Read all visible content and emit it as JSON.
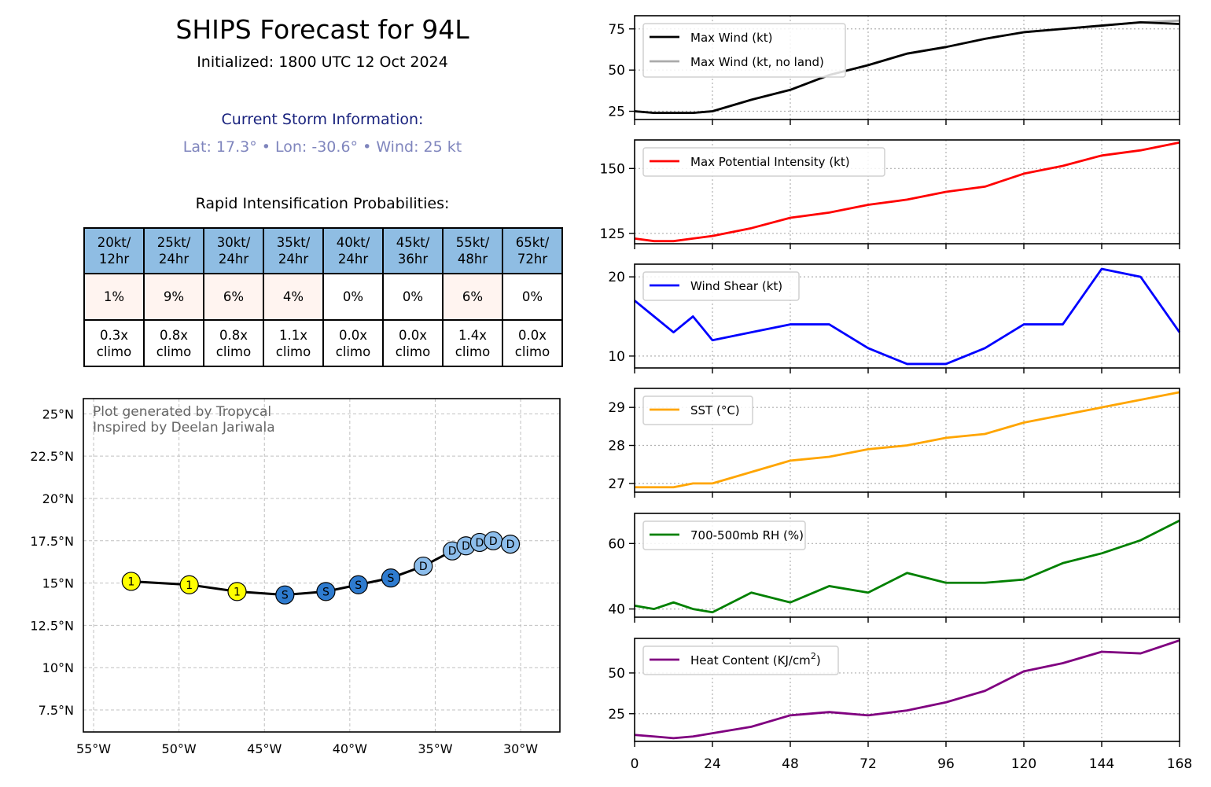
{
  "header": {
    "title": "SHIPS Forecast for 94L",
    "initialized": "Initialized: 1800 UTC 12 Oct 2024",
    "storm_heading": "Current Storm Information:",
    "storm_info": "Lat: 17.3°  • Lon: -30.6°  • Wind: 25 kt",
    "ri_heading": "Rapid Intensification Probabilities:"
  },
  "colors": {
    "table_header": "#8fbde3",
    "prob_tint": "#fff4f0",
    "storm_heading": "#1a237e",
    "storm_info": "#7f85bd",
    "track_line": "#000000",
    "tropical_storm_marker": "#ffff00",
    "subtropical_marker": "#2e7bcf",
    "disturbance_marker": "#8cbdeb"
  },
  "ri_table": {
    "columns": [
      {
        "top": "20kt/",
        "bottom": "12hr",
        "prob": "1%",
        "prob_value": 1,
        "climo_top": "0.3x",
        "climo_bottom": "climo"
      },
      {
        "top": "25kt/",
        "bottom": "24hr",
        "prob": "9%",
        "prob_value": 9,
        "climo_top": "0.8x",
        "climo_bottom": "climo"
      },
      {
        "top": "30kt/",
        "bottom": "24hr",
        "prob": "6%",
        "prob_value": 6,
        "climo_top": "0.8x",
        "climo_bottom": "climo"
      },
      {
        "top": "35kt/",
        "bottom": "24hr",
        "prob": "4%",
        "prob_value": 4,
        "climo_top": "1.1x",
        "climo_bottom": "climo"
      },
      {
        "top": "40kt/",
        "bottom": "24hr",
        "prob": "0%",
        "prob_value": 0,
        "climo_top": "0.0x",
        "climo_bottom": "climo"
      },
      {
        "top": "45kt/",
        "bottom": "36hr",
        "prob": "0%",
        "prob_value": 0,
        "climo_top": "0.0x",
        "climo_bottom": "climo"
      },
      {
        "top": "55kt/",
        "bottom": "48hr",
        "prob": "6%",
        "prob_value": 6,
        "climo_top": "1.4x",
        "climo_bottom": "climo"
      },
      {
        "top": "65kt/",
        "bottom": "72hr",
        "prob": "0%",
        "prob_value": 0,
        "climo_top": "0.0x",
        "climo_bottom": "climo"
      }
    ]
  },
  "chart_data": [
    {
      "type": "map",
      "annotation_lines": [
        "Plot generated by Tropycal",
        "Inspired by Deelan Jariwala"
      ],
      "xlim": [
        -55.6,
        -27.7
      ],
      "ylim": [
        6.2,
        25.9
      ],
      "lon_ticks": [
        -55,
        -50,
        -45,
        -40,
        -35,
        -30
      ],
      "lon_tick_labels": [
        "55°W",
        "50°W",
        "45°W",
        "40°W",
        "35°W",
        "30°W"
      ],
      "lat_ticks": [
        7.5,
        10,
        12.5,
        15,
        17.5,
        20,
        22.5,
        25
      ],
      "lat_tick_labels": [
        "7.5°N",
        "10°N",
        "12.5°N",
        "15°N",
        "17.5°N",
        "20°N",
        "22.5°N",
        "25°N"
      ],
      "grid": true,
      "track": [
        {
          "lon": -30.6,
          "lat": 17.3,
          "label": "D"
        },
        {
          "lon": -31.6,
          "lat": 17.5,
          "label": "D"
        },
        {
          "lon": -32.4,
          "lat": 17.4,
          "label": "D"
        },
        {
          "lon": -33.2,
          "lat": 17.2,
          "label": "D"
        },
        {
          "lon": -34.0,
          "lat": 16.9,
          "label": "D"
        },
        {
          "lon": -35.7,
          "lat": 16.0,
          "label": "D"
        },
        {
          "lon": -37.6,
          "lat": 15.3,
          "label": "S"
        },
        {
          "lon": -39.5,
          "lat": 14.9,
          "label": "S"
        },
        {
          "lon": -41.4,
          "lat": 14.5,
          "label": "S"
        },
        {
          "lon": -43.8,
          "lat": 14.3,
          "label": "S"
        },
        {
          "lon": -46.6,
          "lat": 14.5,
          "label": "1"
        },
        {
          "lon": -49.4,
          "lat": 14.9,
          "label": "1"
        },
        {
          "lon": -52.8,
          "lat": 15.1,
          "label": "1"
        }
      ]
    },
    {
      "type": "line",
      "x_ticks": [
        0,
        24,
        48,
        72,
        96,
        120,
        144,
        168
      ],
      "xlim": [
        0,
        168
      ],
      "grid": true,
      "legend_placement": "upper-left",
      "panels": [
        {
          "ylim": [
            20,
            83
          ],
          "y_ticks": [
            25,
            50,
            75
          ],
          "series": [
            {
              "name": "Max Wind (kt)",
              "color": "#000000",
              "x": [
                0,
                6,
                12,
                18,
                24,
                36,
                48,
                60,
                72,
                84,
                96,
                108,
                120,
                132,
                144,
                156,
                168
              ],
              "y": [
                25,
                24,
                24,
                24,
                25,
                32,
                38,
                47,
                53,
                60,
                64,
                69,
                73,
                75,
                77,
                79,
                78
              ]
            },
            {
              "name": "Max Wind (kt, no land)",
              "color": "#aaaaaa",
              "x": [
                0,
                6,
                12,
                18,
                24,
                36,
                48,
                60,
                72,
                84,
                96,
                108,
                120,
                132,
                144,
                156,
                168
              ],
              "y": [
                25,
                24,
                24,
                24,
                25,
                32,
                38,
                47,
                53,
                60,
                64,
                69,
                73,
                75,
                77,
                79,
                80
              ]
            }
          ]
        },
        {
          "ylim": [
            121,
            161
          ],
          "y_ticks": [
            125,
            150
          ],
          "series": [
            {
              "name": "Max Potential Intensity (kt)",
              "color": "#ff0000",
              "x": [
                0,
                6,
                12,
                18,
                24,
                36,
                48,
                60,
                72,
                84,
                96,
                108,
                120,
                132,
                144,
                156,
                168
              ],
              "y": [
                123,
                122,
                122,
                123,
                124,
                127,
                131,
                133,
                136,
                138,
                141,
                143,
                148,
                151,
                155,
                157,
                160
              ]
            }
          ]
        },
        {
          "ylim": [
            8.5,
            21.6
          ],
          "y_ticks": [
            10,
            20
          ],
          "series": [
            {
              "name": "Wind Shear (kt)",
              "color": "#0000ff",
              "x": [
                0,
                6,
                12,
                18,
                24,
                36,
                48,
                60,
                72,
                84,
                96,
                108,
                120,
                132,
                144,
                156,
                168
              ],
              "y": [
                17,
                15,
                13,
                15,
                12,
                13,
                14,
                14,
                11,
                9,
                9,
                11,
                14,
                14,
                21,
                20,
                13
              ]
            }
          ]
        },
        {
          "ylim": [
            26.77,
            29.5
          ],
          "y_ticks": [
            27,
            28,
            29
          ],
          "series": [
            {
              "name": "SST (°C)",
              "color": "#ffa500",
              "x": [
                0,
                6,
                12,
                18,
                24,
                36,
                48,
                60,
                72,
                84,
                96,
                108,
                120,
                132,
                144,
                156,
                168
              ],
              "y": [
                26.9,
                26.9,
                26.9,
                27.0,
                27.0,
                27.3,
                27.6,
                27.7,
                27.9,
                28.0,
                28.2,
                28.3,
                28.6,
                28.8,
                29.0,
                29.2,
                29.4
              ]
            }
          ]
        },
        {
          "ylim": [
            37.5,
            69.2
          ],
          "y_ticks": [
            40,
            60
          ],
          "series": [
            {
              "name": "700-500mb RH (%)",
              "color": "#008000",
              "x": [
                0,
                6,
                12,
                18,
                24,
                36,
                48,
                60,
                72,
                84,
                96,
                108,
                120,
                132,
                144,
                156,
                168
              ],
              "y": [
                41,
                40,
                42,
                40,
                39,
                45,
                42,
                47,
                45,
                51,
                48,
                48,
                49,
                54,
                57,
                61,
                67
              ]
            }
          ]
        },
        {
          "ylim": [
            8,
            71.2
          ],
          "y_ticks": [
            25,
            50
          ],
          "series": [
            {
              "name": "Heat Content (KJ/cm",
              "name_sup": "2",
              "name_end": ")",
              "color": "#800080",
              "x": [
                0,
                6,
                12,
                18,
                24,
                36,
                48,
                60,
                72,
                84,
                96,
                108,
                120,
                132,
                144,
                156,
                168
              ],
              "y": [
                12,
                11,
                10,
                11,
                13,
                17,
                24,
                26,
                24,
                27,
                32,
                39,
                51,
                56,
                63,
                62,
                70
              ]
            }
          ]
        }
      ]
    }
  ]
}
